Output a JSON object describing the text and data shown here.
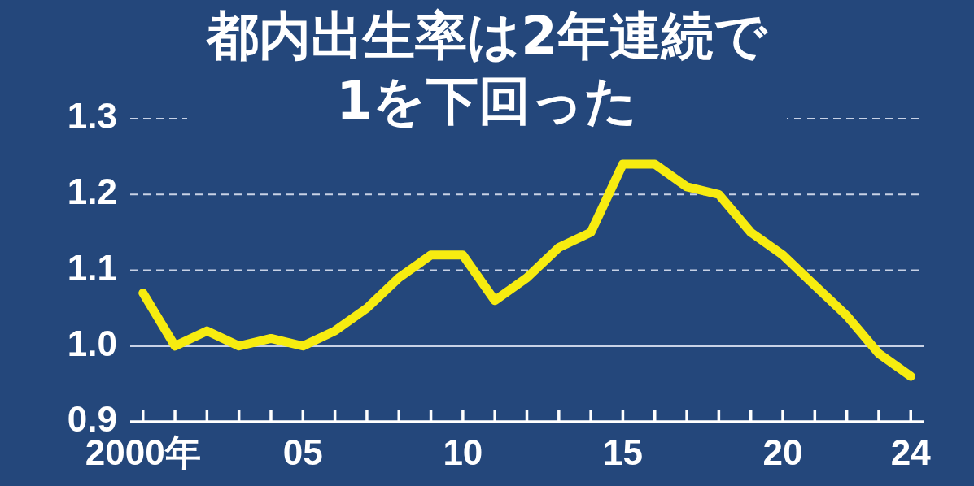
{
  "chart_data": {
    "type": "line",
    "title": "都内出生率は2年連続で\n1を下回った",
    "x": [
      2000,
      2001,
      2002,
      2003,
      2004,
      2005,
      2006,
      2007,
      2008,
      2009,
      2010,
      2011,
      2012,
      2013,
      2014,
      2015,
      2016,
      2017,
      2018,
      2019,
      2020,
      2021,
      2022,
      2023,
      2024
    ],
    "series": [
      {
        "color": "#f7ec10",
        "values": [
          1.07,
          1.0,
          1.02,
          1.0,
          1.01,
          1.0,
          1.02,
          1.05,
          1.09,
          1.12,
          1.12,
          1.06,
          1.09,
          1.13,
          1.15,
          1.24,
          1.24,
          1.21,
          1.2,
          1.15,
          1.12,
          1.08,
          1.04,
          0.99,
          0.96
        ]
      }
    ],
    "xlim": [
      1999.6,
      2024.4
    ],
    "xticks": [
      {
        "value": 2000,
        "label": "2000年"
      },
      {
        "value": 2001,
        "label": null
      },
      {
        "value": 2002,
        "label": null
      },
      {
        "value": 2003,
        "label": null
      },
      {
        "value": 2004,
        "label": null
      },
      {
        "value": 2005,
        "label": "05"
      },
      {
        "value": 2006,
        "label": null
      },
      {
        "value": 2007,
        "label": null
      },
      {
        "value": 2008,
        "label": null
      },
      {
        "value": 2009,
        "label": null
      },
      {
        "value": 2010,
        "label": "10"
      },
      {
        "value": 2011,
        "label": null
      },
      {
        "value": 2012,
        "label": null
      },
      {
        "value": 2013,
        "label": null
      },
      {
        "value": 2014,
        "label": null
      },
      {
        "value": 2015,
        "label": "15"
      },
      {
        "value": 2016,
        "label": null
      },
      {
        "value": 2017,
        "label": null
      },
      {
        "value": 2018,
        "label": null
      },
      {
        "value": 2019,
        "label": null
      },
      {
        "value": 2020,
        "label": "20"
      },
      {
        "value": 2021,
        "label": null
      },
      {
        "value": 2022,
        "label": null
      },
      {
        "value": 2023,
        "label": null
      },
      {
        "value": 2024,
        "label": "24"
      }
    ],
    "ylim": [
      0.9,
      1.3
    ],
    "yticks": [
      {
        "value": 0.9,
        "label": "0.9"
      },
      {
        "value": 1.0,
        "label": "1.0"
      },
      {
        "value": 1.1,
        "label": "1.1"
      },
      {
        "value": 1.2,
        "label": "1.2"
      },
      {
        "value": 1.3,
        "label": "1.3"
      }
    ],
    "grid": "y",
    "line_style": "solid",
    "marker": "none",
    "ref_lines": [
      {
        "axis": "y",
        "value": 1.0,
        "color": "#c8d2e6",
        "line_style": "solid"
      }
    ]
  }
}
